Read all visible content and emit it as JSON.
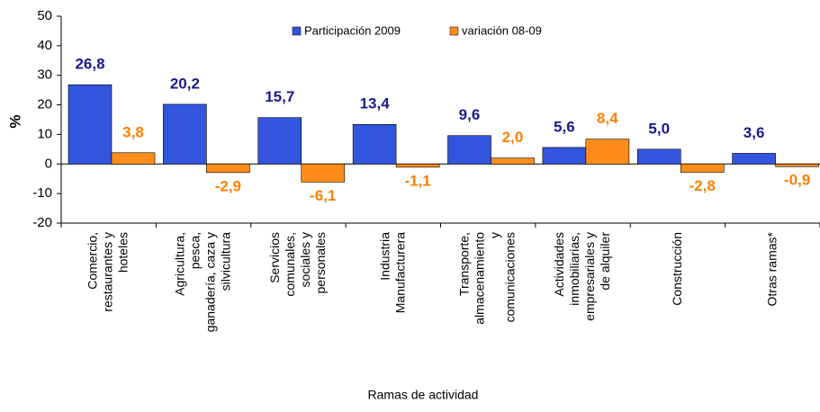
{
  "chart_data": {
    "type": "bar",
    "categories": [
      "Comercio,\nrestaurantes y\nhoteles",
      "Agricultura,\npesca,\nganadería, caza y\nsilvicultura",
      "Servicios\ncomunales,\nsociales y\npersonales",
      "Industria\nManufacturera",
      "Transporte,\nalmacenamiento\ny\ncomunicaciones",
      "Actividades\ninmobiliarias,\nempresariales y\nde alquiler",
      "Construcción",
      "Otras ramas*"
    ],
    "series": [
      {
        "name": "Participación 2009",
        "color": "#3355dd",
        "label_color": "#1a1a8c",
        "values": [
          26.8,
          20.2,
          15.7,
          13.4,
          9.6,
          5.6,
          5.0,
          3.6
        ],
        "value_labels": [
          "26,8",
          "20,2",
          "15,7",
          "13,4",
          "9,6",
          "5,6",
          "5,0",
          "3,6"
        ]
      },
      {
        "name": "variación 08-09",
        "color": "#ff8c1a",
        "label_color": "#ff7f00",
        "values": [
          3.8,
          -2.9,
          -6.1,
          -1.1,
          2.0,
          8.4,
          -2.8,
          -0.9
        ],
        "value_labels": [
          "3,8",
          "-2,9",
          "-6,1",
          "-1,1",
          "2,0",
          "8,4",
          "-2,8",
          "-0,9"
        ]
      }
    ],
    "y_label": "%",
    "x_label": "Ramas de actividad",
    "ylim": [
      -20,
      50
    ],
    "yticks": [
      -20,
      -10,
      0,
      10,
      20,
      30,
      40,
      50
    ],
    "grid": false,
    "legend": "top"
  }
}
